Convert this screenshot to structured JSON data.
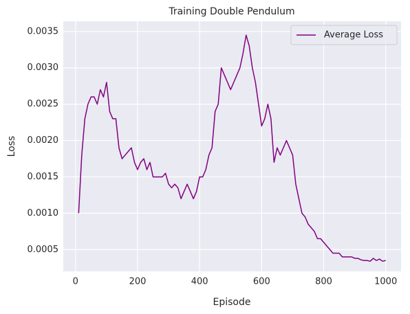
{
  "chart_data": {
    "type": "line",
    "title": "Training Double Pendulum",
    "x_label": "Episode",
    "y_label": "Loss",
    "x": [
      10,
      20,
      30,
      40,
      50,
      60,
      70,
      80,
      90,
      100,
      110,
      120,
      130,
      140,
      150,
      160,
      170,
      180,
      190,
      200,
      210,
      220,
      230,
      240,
      250,
      260,
      270,
      280,
      290,
      300,
      310,
      320,
      330,
      340,
      350,
      360,
      370,
      380,
      390,
      400,
      410,
      420,
      430,
      440,
      450,
      460,
      470,
      480,
      490,
      500,
      510,
      520,
      530,
      540,
      550,
      560,
      570,
      580,
      590,
      600,
      610,
      620,
      630,
      640,
      650,
      660,
      670,
      680,
      690,
      700,
      710,
      720,
      730,
      740,
      750,
      760,
      770,
      780,
      790,
      800,
      810,
      820,
      830,
      840,
      850,
      860,
      870,
      880,
      890,
      900,
      910,
      920,
      930,
      940,
      950,
      960,
      970,
      980,
      990,
      1000
    ],
    "series": [
      {
        "name": "Average Loss",
        "color": "#800080",
        "values": [
          0.001,
          0.0018,
          0.0023,
          0.0025,
          0.0026,
          0.0026,
          0.0025,
          0.0027,
          0.0026,
          0.0028,
          0.0024,
          0.0023,
          0.0023,
          0.0019,
          0.00175,
          0.0018,
          0.00185,
          0.0019,
          0.0017,
          0.0016,
          0.0017,
          0.00175,
          0.0016,
          0.0017,
          0.0015,
          0.0015,
          0.0015,
          0.0015,
          0.00155,
          0.0014,
          0.00135,
          0.0014,
          0.00135,
          0.0012,
          0.0013,
          0.0014,
          0.0013,
          0.0012,
          0.0013,
          0.0015,
          0.0015,
          0.0016,
          0.0018,
          0.0019,
          0.0024,
          0.0025,
          0.003,
          0.0029,
          0.0028,
          0.0027,
          0.0028,
          0.0029,
          0.003,
          0.0032,
          0.00345,
          0.0033,
          0.003,
          0.0028,
          0.0025,
          0.0022,
          0.0023,
          0.0025,
          0.0023,
          0.0017,
          0.0019,
          0.0018,
          0.0019,
          0.002,
          0.0019,
          0.0018,
          0.0014,
          0.0012,
          0.001,
          0.00095,
          0.00085,
          0.0008,
          0.00075,
          0.00065,
          0.00065,
          0.0006,
          0.00055,
          0.0005,
          0.00045,
          0.00045,
          0.00045,
          0.0004,
          0.0004,
          0.0004,
          0.0004,
          0.00038,
          0.00038,
          0.00036,
          0.00035,
          0.00035,
          0.00034,
          0.00038,
          0.00035,
          0.00037,
          0.00034,
          0.00035
        ]
      }
    ],
    "xlim": [
      -39.5,
      1049.5
    ],
    "xticks": [
      0,
      200,
      400,
      600,
      800,
      1000
    ],
    "ylim": [
      0.0002,
      0.00364
    ],
    "yticks": [
      0.0005,
      {
        "value": 0.001,
        "label": "0.0010"
      },
      0.0015,
      {
        "value": 0.002,
        "label": "0.0020"
      },
      0.0025,
      {
        "value": 0.003,
        "label": "0.0030"
      },
      0.0035
    ],
    "grid": true,
    "legend": "upper right"
  }
}
